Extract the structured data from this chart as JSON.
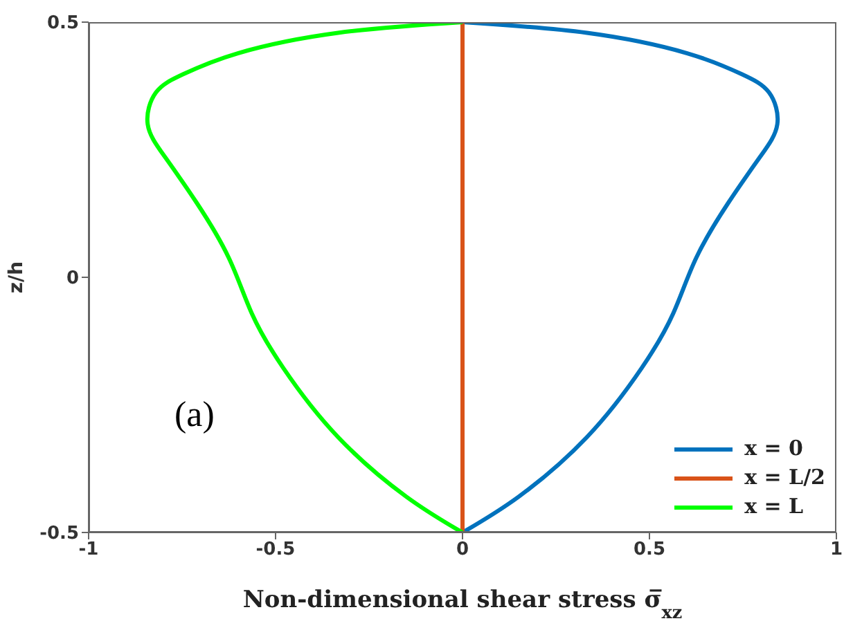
{
  "chart_data": {
    "type": "line",
    "xlabel": "Non-dimensional shear stress σ̅$_{xz}$",
    "ylabel": "z/h",
    "xlim": [
      -1,
      1
    ],
    "xticks": [
      -1,
      -0.5,
      0,
      0.5,
      1
    ],
    "ylim": [
      -0.5,
      0.5
    ],
    "yticks": [
      -0.5,
      0,
      0.5
    ],
    "grid": false,
    "legend": "bottom right",
    "marker": "none",
    "line_style": "solid",
    "annotations": [
      "(a)"
    ],
    "series": [
      {
        "name": "x = 0",
        "color": "#0072bd",
        "x": [
          0,
          0.15,
          0.333,
          0.479,
          0.564,
          0.625,
          0.711,
          0.796,
          0.842,
          0.82,
          0.747,
          0.601,
          0.333,
          0
        ],
        "values": [
          -0.5,
          -0.43,
          -0.313,
          -0.178,
          -0.07,
          0.038,
          0.146,
          0.236,
          0.3,
          0.362,
          0.398,
          0.439,
          0.479,
          0.5
        ]
      },
      {
        "name": "x = L/2",
        "color": "#d95319",
        "x": [
          0,
          0
        ],
        "values": [
          -0.5,
          0.5
        ]
      },
      {
        "name": "x = L",
        "color": "#00ff00",
        "x": [
          0,
          -0.15,
          -0.333,
          -0.479,
          -0.564,
          -0.625,
          -0.711,
          -0.796,
          -0.842,
          -0.82,
          -0.747,
          -0.601,
          -0.333,
          0
        ],
        "values": [
          -0.5,
          -0.43,
          -0.313,
          -0.178,
          -0.07,
          0.038,
          0.146,
          0.236,
          0.3,
          0.362,
          0.398,
          0.439,
          0.479,
          0.5
        ]
      }
    ]
  }
}
